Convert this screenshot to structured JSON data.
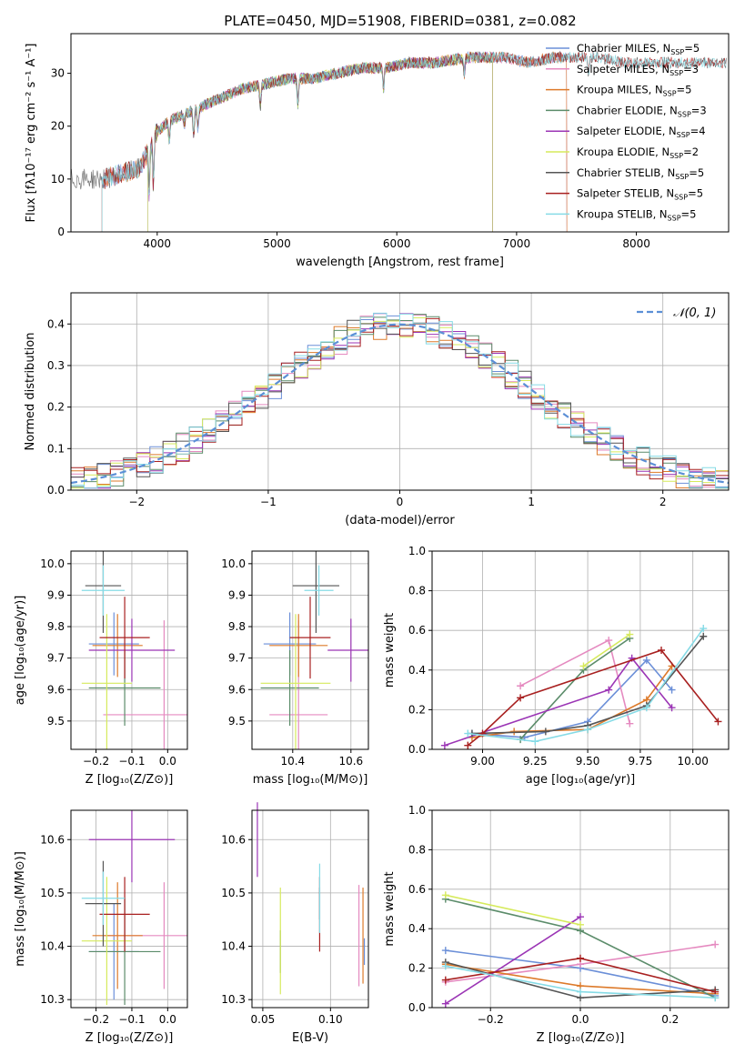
{
  "title": "PLATE=0450, MJD=51908, FIBERID=0381, z=0.082",
  "colors": {
    "Chabrier MILES": "#6b8fd8",
    "Salpeter MILES": "#e58ac0",
    "Kroupa MILES": "#dd7a2a",
    "Chabrier ELODIE": "#5b8c6a",
    "Salpeter ELODIE": "#9b35b5",
    "Kroupa ELODIE": "#d6ea5c",
    "Chabrier STELIB": "#555555",
    "Salpeter STELIB": "#a82020",
    "Kroupa STELIB": "#86dbe6",
    "normal": "#5b8fd6",
    "grid": "#b0b0b0"
  },
  "chart_data": [
    {
      "type": "line",
      "name": "spectrum",
      "xlabel": "wavelength [Angstrom, rest frame]",
      "ylabel": "Flux [fλ10⁻¹⁷ erg cm⁻² s⁻¹ A⁻¹]",
      "xlim": [
        3280,
        8770
      ],
      "ylim": [
        0,
        37.5
      ],
      "xticks": [
        "4000",
        "5000",
        "6000",
        "7000",
        "8000"
      ],
      "yticks": [
        "0",
        "10",
        "20",
        "30"
      ],
      "grid": false,
      "legend": "right",
      "legend_entries": [
        {
          "label": "Chabrier MILES, N",
          "sub": "SSP",
          "tail": "=5"
        },
        {
          "label": "Salpeter MILES, N",
          "sub": "SSP",
          "tail": "=3"
        },
        {
          "label": "Kroupa MILES, N",
          "sub": "SSP",
          "tail": "=5"
        },
        {
          "label": "Chabrier ELODIE, N",
          "sub": "SSP",
          "tail": "=3"
        },
        {
          "label": "Salpeter ELODIE, N",
          "sub": "SSP",
          "tail": "=4"
        },
        {
          "label": "Kroupa ELODIE, N",
          "sub": "SSP",
          "tail": "=2"
        },
        {
          "label": "Chabrier STELIB, N",
          "sub": "SSP",
          "tail": "=5"
        },
        {
          "label": "Salpeter STELIB, N",
          "sub": "SSP",
          "tail": "=5"
        },
        {
          "label": "Kroupa STELIB, N",
          "sub": "SSP",
          "tail": "=5"
        }
      ],
      "continuum": [
        [
          3560,
          10
        ],
        [
          3700,
          11
        ],
        [
          3850,
          12
        ],
        [
          3920,
          15
        ],
        [
          4000,
          19
        ],
        [
          4100,
          21
        ],
        [
          4300,
          23
        ],
        [
          4500,
          25
        ],
        [
          4700,
          27
        ],
        [
          4900,
          28
        ],
        [
          5100,
          29
        ],
        [
          5300,
          29
        ],
        [
          5500,
          30
        ],
        [
          5700,
          31
        ],
        [
          5900,
          31
        ],
        [
          6100,
          32
        ],
        [
          6300,
          32
        ],
        [
          6600,
          33
        ],
        [
          6900,
          33
        ],
        [
          7100,
          32
        ],
        [
          7300,
          33
        ],
        [
          7500,
          33
        ],
        [
          7700,
          33
        ],
        [
          7900,
          32
        ],
        [
          8100,
          32
        ],
        [
          8300,
          32
        ],
        [
          8500,
          32
        ]
      ],
      "absorption_lines": [
        [
          3933,
          8
        ],
        [
          3968,
          8
        ],
        [
          4101,
          4
        ],
        [
          4227,
          2
        ],
        [
          4304,
          5
        ],
        [
          4340,
          4
        ],
        [
          4861,
          4
        ],
        [
          5175,
          5
        ],
        [
          5890,
          4
        ],
        [
          6563,
          3
        ],
        [
          7600,
          3
        ]
      ],
      "series_ranges": {
        "Chabrier MILES": [
          3540,
          7420
        ],
        "Salpeter MILES": [
          3540,
          7420
        ],
        "Kroupa MILES": [
          3540,
          7420
        ],
        "Chabrier ELODIE": [
          3920,
          6800
        ],
        "Salpeter ELODIE": [
          3920,
          6800
        ],
        "Kroupa ELODIE": [
          3920,
          6800
        ],
        "Chabrier STELIB": [
          3200,
          8750
        ],
        "Salpeter STELIB": [
          3540,
          8750
        ],
        "Kroupa STELIB": [
          3540,
          8750
        ]
      }
    },
    {
      "type": "histogram",
      "name": "residuals",
      "xlabel": "(data-model)/error",
      "ylabel": "Normed distribution",
      "xlim": [
        -2.5,
        2.5
      ],
      "ylim": [
        0,
        0.475
      ],
      "xticks": [
        "−2",
        "−1",
        "0",
        "1",
        "2"
      ],
      "yticks": [
        "0.0",
        "0.1",
        "0.2",
        "0.3",
        "0.4"
      ],
      "grid": true,
      "legend": "top-right",
      "legend_label": "𝒩(0, 1)",
      "bin_width": 0.1,
      "bin_start": -2.5
    },
    {
      "type": "scatter",
      "name": "age-vs-Z",
      "xlabel": "Z [log₁₀(Z/Z⊙)]",
      "ylabel": "age  [log₁₀(age/yr)]",
      "xlim": [
        -0.27,
        0.055
      ],
      "ylim": [
        9.41,
        10.04
      ],
      "xticks": [
        -0.2,
        -0.1,
        0.0
      ],
      "xticklabels": [
        "−0.2",
        "−0.1",
        "0.0"
      ],
      "yticks": [
        9.5,
        9.6,
        9.7,
        9.8,
        9.9,
        10.0
      ],
      "yticklabels": [
        "9.5",
        "9.6",
        "9.7",
        "9.8",
        "9.9",
        "10.0"
      ],
      "grid": true
    },
    {
      "type": "scatter",
      "name": "age-vs-mass",
      "xlabel": "mass [log₁₀(M/M⊙)]",
      "ylabel": "",
      "xlim": [
        10.26,
        10.66
      ],
      "ylim": [
        9.41,
        10.04
      ],
      "xticks": [
        10.4,
        10.6
      ],
      "xticklabels": [
        "10.4",
        "10.6"
      ],
      "yticks": [
        9.5,
        9.6,
        9.7,
        9.8,
        9.9,
        10.0
      ],
      "yticklabels": [
        "9.5",
        "9.6",
        "9.7",
        "9.8",
        "9.9",
        "10.0"
      ],
      "grid": true
    },
    {
      "type": "line",
      "name": "mass-weight-vs-age",
      "xlabel": "age  [log₁₀(age/yr)]",
      "ylabel": "mass weight",
      "xlim": [
        8.76,
        10.17
      ],
      "ylim": [
        0,
        1.0
      ],
      "xticks": [
        9.0,
        9.5,
        10.0
      ],
      "xticklabels": [
        "9.00",
        "9.25",
        "9.50",
        "9.75",
        "10.00"
      ],
      "xtickvals": [
        9.0,
        9.25,
        9.5,
        9.75,
        10.0
      ],
      "yticks": [
        0.0,
        0.2,
        0.4,
        0.6,
        0.8,
        1.0
      ],
      "yticklabels": [
        "0.0",
        "0.2",
        "0.4",
        "0.6",
        "0.8",
        "1.0"
      ],
      "grid": true,
      "series": [
        {
          "name": "Chabrier MILES",
          "x": [
            8.95,
            9.2,
            9.5,
            9.78,
            9.9
          ],
          "y": [
            0.08,
            0.06,
            0.14,
            0.45,
            0.3
          ]
        },
        {
          "name": "Salpeter MILES",
          "x": [
            9.18,
            9.6,
            9.7
          ],
          "y": [
            0.32,
            0.55,
            0.13
          ]
        },
        {
          "name": "Kroupa MILES",
          "x": [
            8.95,
            9.15,
            9.5,
            9.78,
            9.9
          ],
          "y": [
            0.06,
            0.09,
            0.1,
            0.25,
            0.42
          ]
        },
        {
          "name": "Chabrier ELODIE",
          "x": [
            9.18,
            9.48,
            9.7
          ],
          "y": [
            0.05,
            0.4,
            0.56
          ]
        },
        {
          "name": "Salpeter ELODIE",
          "x": [
            8.82,
            9.6,
            9.71,
            9.9
          ],
          "y": [
            0.02,
            0.3,
            0.46,
            0.21
          ]
        },
        {
          "name": "Kroupa ELODIE",
          "x": [
            9.48,
            9.7
          ],
          "y": [
            0.42,
            0.58
          ]
        },
        {
          "name": "Chabrier STELIB",
          "x": [
            8.95,
            9.3,
            9.5,
            9.78,
            10.05
          ],
          "y": [
            0.08,
            0.09,
            0.12,
            0.22,
            0.57
          ]
        },
        {
          "name": "Salpeter STELIB",
          "x": [
            8.93,
            9.0,
            9.18,
            9.85,
            10.12
          ],
          "y": [
            0.02,
            0.08,
            0.26,
            0.5,
            0.14
          ]
        },
        {
          "name": "Kroupa STELIB",
          "x": [
            8.93,
            9.25,
            9.5,
            9.78,
            10.05
          ],
          "y": [
            0.08,
            0.04,
            0.1,
            0.21,
            0.61
          ]
        }
      ]
    },
    {
      "type": "scatter",
      "name": "mass-vs-Z",
      "xlabel": "Z [log₁₀(Z/Z⊙)]",
      "ylabel": "mass [log₁₀(M/M⊙)]",
      "xlim": [
        -0.27,
        0.055
      ],
      "ylim": [
        10.285,
        10.655
      ],
      "xticks": [
        -0.2,
        -0.1,
        0.0
      ],
      "xticklabels": [
        "−0.2",
        "−0.1",
        "0.0"
      ],
      "yticks": [
        10.3,
        10.4,
        10.5,
        10.6
      ],
      "yticklabels": [
        "10.3",
        "10.4",
        "10.5",
        "10.6"
      ],
      "grid": true
    },
    {
      "type": "scatter",
      "name": "mass-vs-EBV",
      "xlabel": "E(B-V)",
      "ylabel": "",
      "xlim": [
        0.042,
        0.128
      ],
      "ylim": [
        10.285,
        10.655
      ],
      "xticks": [
        0.05,
        0.1
      ],
      "xticklabels": [
        "0.05",
        "0.10"
      ],
      "yticks": [
        10.3,
        10.4,
        10.5,
        10.6
      ],
      "yticklabels": [
        "10.3",
        "10.4",
        "10.5",
        "10.6"
      ],
      "grid": true
    },
    {
      "type": "line",
      "name": "mass-weight-vs-Z",
      "xlabel": "Z [log₁₀(Z/Z⊙)]",
      "ylabel": "mass weight",
      "xlim": [
        -0.33,
        0.33
      ],
      "ylim": [
        0,
        1.0
      ],
      "xtickvals": [
        -0.2,
        0.0,
        0.2
      ],
      "xticklabels": [
        "−0.2",
        "0.0",
        "0.2"
      ],
      "yticks": [
        0.0,
        0.2,
        0.4,
        0.6,
        0.8,
        1.0
      ],
      "yticklabels": [
        "0.0",
        "0.2",
        "0.4",
        "0.6",
        "0.8",
        "1.0"
      ],
      "grid": true,
      "series": [
        {
          "name": "Chabrier MILES",
          "x": [
            -0.3,
            0.0,
            0.3
          ],
          "y": [
            0.29,
            0.2,
            0.06
          ]
        },
        {
          "name": "Salpeter MILES",
          "x": [
            -0.3,
            0.0,
            0.3
          ],
          "y": [
            0.13,
            0.22,
            0.32
          ]
        },
        {
          "name": "Kroupa MILES",
          "x": [
            -0.3,
            0.0,
            0.3
          ],
          "y": [
            0.22,
            0.11,
            0.07
          ]
        },
        {
          "name": "Chabrier ELODIE",
          "x": [
            -0.3,
            0.0,
            0.3
          ],
          "y": [
            0.55,
            0.39,
            0.05
          ]
        },
        {
          "name": "Salpeter ELODIE",
          "x": [
            -0.3,
            0.0
          ],
          "y": [
            0.02,
            0.46
          ]
        },
        {
          "name": "Kroupa ELODIE",
          "x": [
            -0.3,
            0.0
          ],
          "y": [
            0.57,
            0.42
          ]
        },
        {
          "name": "Chabrier STELIB",
          "x": [
            -0.3,
            0.0,
            0.3
          ],
          "y": [
            0.23,
            0.05,
            0.09
          ]
        },
        {
          "name": "Salpeter STELIB",
          "x": [
            -0.3,
            0.0,
            0.3
          ],
          "y": [
            0.14,
            0.25,
            0.08
          ]
        },
        {
          "name": "Kroupa STELIB",
          "x": [
            -0.3,
            0.0,
            0.3
          ],
          "y": [
            0.21,
            0.08,
            0.05
          ]
        }
      ]
    }
  ],
  "fit_points": [
    {
      "name": "Chabrier MILES",
      "Z": -0.15,
      "Zerr": 0.07,
      "age": 9.745,
      "ageerr": 0.1,
      "mass": 10.39,
      "masserr": 0.09,
      "ebv": 0.125,
      "ebverr": 0.05
    },
    {
      "name": "Salpeter MILES",
      "Z": -0.01,
      "Zerr": 0.17,
      "age": 9.52,
      "ageerr": 0.3,
      "mass": 10.42,
      "masserr": 0.1,
      "ebv": 0.121,
      "ebverr": 0.19
    },
    {
      "name": "Kroupa MILES",
      "Z": -0.14,
      "Zerr": 0.07,
      "age": 9.74,
      "ageerr": 0.1,
      "mass": 10.42,
      "masserr": 0.1,
      "ebv": 0.124,
      "ebverr": 0.18
    },
    {
      "name": "Chabrier ELODIE",
      "Z": -0.12,
      "Zerr": 0.1,
      "age": 9.605,
      "ageerr": 0.12,
      "mass": 10.39,
      "masserr": 0.1,
      "ebv": 0.063,
      "ebverr": 0.08
    },
    {
      "name": "Salpeter ELODIE",
      "Z": -0.1,
      "Zerr": 0.12,
      "age": 9.725,
      "ageerr": 0.1,
      "mass": 10.6,
      "masserr": 0.08,
      "ebv": 0.046,
      "ebverr": 0.14
    },
    {
      "name": "Kroupa ELODIE",
      "Z": -0.17,
      "Zerr": 0.07,
      "age": 9.62,
      "ageerr": 0.22,
      "mass": 10.41,
      "masserr": 0.12,
      "ebv": 0.063,
      "ebverr": 0.2
    },
    {
      "name": "Chabrier STELIB",
      "Z": -0.18,
      "Zerr": 0.05,
      "age": 9.93,
      "ageerr": 0.15,
      "mass": 10.48,
      "masserr": 0.08,
      "ebv": 0.092,
      "ebverr": 0.06
    },
    {
      "name": "Salpeter STELIB",
      "Z": -0.12,
      "Zerr": 0.07,
      "age": 9.765,
      "ageerr": 0.13,
      "mass": 10.46,
      "masserr": 0.07,
      "ebv": 0.092,
      "ebverr": 0.14
    },
    {
      "name": "Kroupa STELIB",
      "Z": -0.18,
      "Zerr": 0.06,
      "age": 9.915,
      "ageerr": 0.08,
      "mass": 10.49,
      "masserr": 0.05,
      "ebv": 0.092,
      "ebverr": 0.13
    }
  ]
}
